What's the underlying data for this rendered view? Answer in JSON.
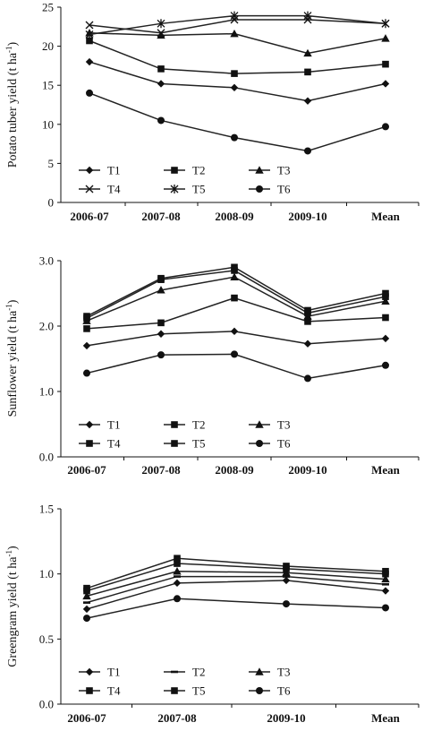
{
  "chart_data": [
    {
      "type": "line",
      "ylabel": "Potato tuber yield (t ha",
      "ylabel_sup": "-1",
      "ylabel_close": ")",
      "ylim": [
        0,
        25
      ],
      "yticks": [
        0,
        5,
        10,
        15,
        20,
        25
      ],
      "ytick_labels": [
        "0",
        "5",
        "10",
        "15",
        "20",
        "25"
      ],
      "categories": [
        "2006-07",
        "2007-08",
        "2008-09",
        "2009-10",
        "Mean"
      ],
      "grid": false,
      "legend_position": "bottom-inside",
      "series": [
        {
          "name": "T1",
          "marker": "diamond",
          "values": [
            18.0,
            15.2,
            14.7,
            13.0,
            15.2
          ]
        },
        {
          "name": "T2",
          "marker": "square",
          "values": [
            20.7,
            17.1,
            16.5,
            16.7,
            17.7
          ]
        },
        {
          "name": "T3",
          "marker": "triangle",
          "values": [
            21.7,
            21.4,
            21.6,
            19.1,
            21.0
          ]
        },
        {
          "name": "T4",
          "marker": "x",
          "values": [
            22.7,
            21.7,
            23.4,
            23.4,
            22.9
          ]
        },
        {
          "name": "T5",
          "marker": "asterisk",
          "values": [
            21.5,
            22.9,
            23.9,
            23.9,
            22.9
          ]
        },
        {
          "name": "T6",
          "marker": "circle",
          "values": [
            14.0,
            10.5,
            8.3,
            6.6,
            9.7
          ]
        }
      ]
    },
    {
      "type": "line",
      "ylabel": "Sunflower yield (t ha",
      "ylabel_sup": "-1",
      "ylabel_close": ")",
      "ylim": [
        0,
        3
      ],
      "yticks": [
        0,
        1,
        2,
        3
      ],
      "ytick_labels": [
        "0.0",
        "1.0",
        "2.0",
        "3.0"
      ],
      "categories": [
        "2006-07",
        "2007-08",
        "2008-09",
        "2009-10",
        "Mean"
      ],
      "grid": false,
      "legend_position": "bottom-inside",
      "series": [
        {
          "name": "T1",
          "marker": "diamond",
          "values": [
            1.7,
            1.88,
            1.92,
            1.73,
            1.81
          ]
        },
        {
          "name": "T2",
          "marker": "square",
          "values": [
            1.96,
            2.05,
            2.43,
            2.07,
            2.13
          ]
        },
        {
          "name": "T3",
          "marker": "triangle",
          "values": [
            2.08,
            2.55,
            2.75,
            2.15,
            2.38
          ]
        },
        {
          "name": "T4",
          "marker": "square",
          "values": [
            2.12,
            2.71,
            2.85,
            2.2,
            2.45
          ]
        },
        {
          "name": "T5",
          "marker": "square",
          "values": [
            2.15,
            2.73,
            2.9,
            2.24,
            2.5
          ]
        },
        {
          "name": "T6",
          "marker": "circle",
          "values": [
            1.28,
            1.56,
            1.57,
            1.2,
            1.4
          ]
        }
      ]
    },
    {
      "type": "line",
      "ylabel": "Greengram yield (t ha",
      "ylabel_sup": "-1",
      "ylabel_close": ")",
      "ylim": [
        0,
        1.5
      ],
      "yticks": [
        0,
        0.5,
        1.0,
        1.5
      ],
      "ytick_labels": [
        "0.0",
        "0.5",
        "1.0",
        "1.5"
      ],
      "categories": [
        "2006-07",
        "2007-08",
        "2009-10",
        "Mean"
      ],
      "grid": false,
      "legend_position": "bottom-inside",
      "series": [
        {
          "name": "T1",
          "marker": "diamond",
          "values": [
            0.73,
            0.93,
            0.95,
            0.87
          ]
        },
        {
          "name": "T2",
          "marker": "dash",
          "values": [
            0.78,
            0.98,
            0.98,
            0.92
          ]
        },
        {
          "name": "T3",
          "marker": "triangle",
          "values": [
            0.83,
            1.02,
            1.01,
            0.96
          ]
        },
        {
          "name": "T4",
          "marker": "square",
          "values": [
            0.87,
            1.08,
            1.04,
            1.0
          ]
        },
        {
          "name": "T5",
          "marker": "square",
          "values": [
            0.89,
            1.12,
            1.06,
            1.02
          ]
        },
        {
          "name": "T6",
          "marker": "circle",
          "values": [
            0.66,
            0.81,
            0.77,
            0.74
          ]
        }
      ]
    }
  ]
}
